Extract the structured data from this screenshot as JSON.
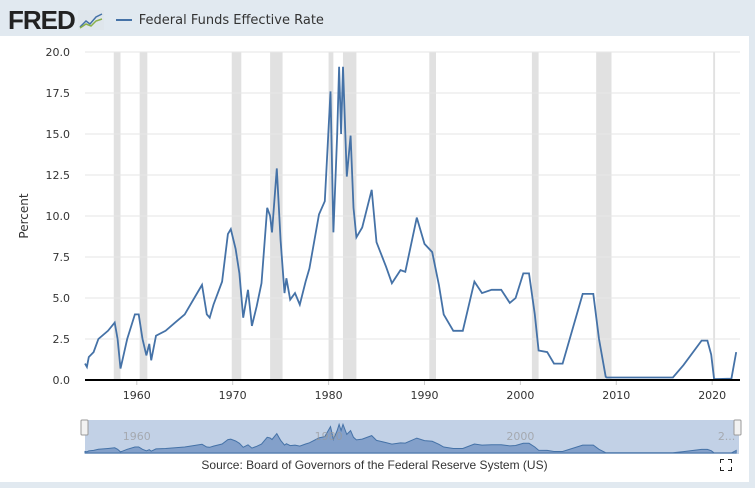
{
  "header": {
    "logo": "FRED",
    "legend_label": "Federal Funds Effective Rate"
  },
  "source": "Source: Board of Governors of the Federal Reserve System (US)",
  "colors": {
    "line": "#4572a7",
    "recession": "#e1e1e1"
  },
  "chart_data": {
    "type": "line",
    "title": "Federal Funds Effective Rate",
    "ylabel": "Percent",
    "xlabel": "",
    "ylim": [
      0,
      20
    ],
    "xlim": [
      1954.6,
      2022.9
    ],
    "yticks": [
      "0.0",
      "2.5",
      "5.0",
      "7.5",
      "10.0",
      "12.5",
      "15.0",
      "17.5",
      "20.0"
    ],
    "xticks": [
      "1960",
      "1970",
      "1980",
      "1990",
      "2000",
      "2010",
      "2020"
    ],
    "navigator_ticks": [
      "1960",
      "1980",
      "2000",
      "2..."
    ],
    "recessions": [
      [
        1957.6,
        1958.3
      ],
      [
        1960.3,
        1961.1
      ],
      [
        1969.9,
        1970.9
      ],
      [
        1973.9,
        1975.2
      ],
      [
        1980.0,
        1980.5
      ],
      [
        1981.5,
        1982.9
      ],
      [
        1990.5,
        1991.2
      ],
      [
        2001.2,
        2001.9
      ],
      [
        2007.9,
        2009.5
      ],
      [
        2020.1,
        2020.3
      ]
    ],
    "series": [
      {
        "name": "Federal Funds Effective Rate",
        "x": [
          1954.6,
          1954.8,
          1955,
          1955.5,
          1956,
          1957,
          1957.7,
          1958,
          1958.3,
          1958.5,
          1959,
          1959.8,
          1960.2,
          1960.6,
          1961,
          1961.3,
          1961.5,
          1962,
          1963,
          1964,
          1965,
          1966,
          1966.8,
          1967.3,
          1967.6,
          1968,
          1968.9,
          1969.5,
          1969.8,
          1970.3,
          1970.7,
          1971.1,
          1971.6,
          1972,
          1972.5,
          1973,
          1973.6,
          1973.9,
          1974.1,
          1974.6,
          1975,
          1975.4,
          1975.6,
          1976,
          1976.5,
          1977,
          1977.6,
          1978,
          1979,
          1979.6,
          1980.2,
          1980.5,
          1980.9,
          1981.1,
          1981.3,
          1981.5,
          1981.9,
          1982.3,
          1982.6,
          1982.9,
          1983.5,
          1984.5,
          1985,
          1986,
          1986.6,
          1987.5,
          1988,
          1989.2,
          1990,
          1990.8,
          1991.5,
          1992,
          1993,
          1994,
          1995.2,
          1996,
          1997,
          1998,
          1998.9,
          1999.5,
          2000.3,
          2000.9,
          2001.5,
          2001.9,
          2002.8,
          2003.5,
          2004.4,
          2006.5,
          2007.6,
          2008.2,
          2008.9,
          2009,
          2015.9,
          2017,
          2018.9,
          2019.5,
          2019.9,
          2020.2,
          2022.0,
          2022.5
        ],
        "values": [
          1.0,
          0.8,
          1.4,
          1.7,
          2.5,
          3.0,
          3.5,
          2.5,
          0.7,
          1.2,
          2.5,
          4.0,
          4.0,
          2.5,
          1.5,
          2.2,
          1.2,
          2.7,
          3.0,
          3.5,
          4.0,
          5.0,
          5.8,
          4.0,
          3.8,
          4.6,
          6.0,
          8.9,
          9.2,
          8.0,
          6.5,
          3.8,
          5.5,
          3.3,
          4.5,
          5.9,
          10.5,
          10.0,
          9.0,
          12.9,
          8.5,
          5.3,
          6.2,
          4.9,
          5.3,
          4.6,
          6.0,
          6.8,
          10.1,
          10.9,
          17.6,
          9.0,
          15.0,
          19.1,
          15.0,
          19.1,
          12.4,
          14.9,
          10.5,
          8.7,
          9.3,
          11.6,
          8.4,
          6.9,
          5.9,
          6.7,
          6.6,
          9.9,
          8.3,
          7.8,
          5.8,
          4.0,
          3.0,
          3.0,
          6.0,
          5.3,
          5.5,
          5.5,
          4.7,
          5.0,
          6.5,
          6.5,
          4.0,
          1.8,
          1.7,
          1.0,
          1.0,
          5.25,
          5.25,
          2.5,
          0.2,
          0.15,
          0.15,
          0.9,
          2.4,
          2.4,
          1.55,
          0.05,
          0.08,
          1.7
        ]
      }
    ]
  }
}
